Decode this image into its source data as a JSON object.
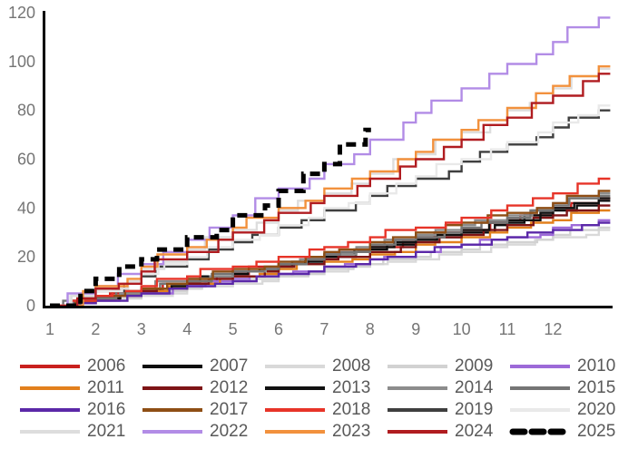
{
  "chart_data": {
    "type": "line",
    "subtype": "cumulative-step",
    "title": "",
    "xlabel": "",
    "ylabel": "",
    "x_ticks": [
      "1",
      "2",
      "3",
      "4",
      "5",
      "6",
      "7",
      "8",
      "9",
      "10",
      "11",
      "12"
    ],
    "y_ticks": [
      0,
      20,
      40,
      60,
      80,
      100,
      120
    ],
    "xlim": [
      1,
      13.25
    ],
    "ylim": [
      0,
      120
    ],
    "grid": false,
    "legend_position": "bottom",
    "axis_color": "#000000",
    "tick_label_color": "#757575",
    "legend_label_color": "#595959",
    "x_unit": "month",
    "series": [
      {
        "name": "2006",
        "color": "#c9211e",
        "values": [
          0,
          3,
          6,
          10,
          13,
          17,
          20,
          24,
          28,
          31,
          35,
          40,
          44
        ]
      },
      {
        "name": "2007",
        "color": "#0d0d0d",
        "values": [
          0,
          3,
          6,
          9,
          13,
          16,
          20,
          23,
          27,
          30,
          34,
          39,
          43
        ]
      },
      {
        "name": "2008",
        "color": "#d9d9d9",
        "values": [
          0,
          2,
          4,
          7,
          9,
          12,
          14,
          17,
          19,
          22,
          25,
          28,
          31
        ]
      },
      {
        "name": "2009",
        "color": "#d2d2d2",
        "values": [
          0,
          2,
          5,
          7,
          10,
          12,
          15,
          17,
          20,
          23,
          26,
          29,
          32
        ]
      },
      {
        "name": "2010",
        "color": "#9d6ad8",
        "values": [
          0,
          2,
          5,
          8,
          11,
          13,
          16,
          19,
          22,
          25,
          28,
          32,
          35
        ]
      },
      {
        "name": "2011",
        "color": "#e2801d",
        "values": [
          0,
          3,
          6,
          9,
          12,
          15,
          18,
          21,
          25,
          28,
          32,
          35,
          39
        ]
      },
      {
        "name": "2012",
        "color": "#7e1416",
        "values": [
          0,
          3,
          6,
          9,
          12,
          16,
          19,
          22,
          26,
          29,
          33,
          37,
          41
        ]
      },
      {
        "name": "2013",
        "color": "#111111",
        "values": [
          0,
          3,
          7,
          10,
          14,
          17,
          21,
          24,
          28,
          31,
          35,
          40,
          44
        ]
      },
      {
        "name": "2014",
        "color": "#8c8c8c",
        "values": [
          0,
          4,
          7,
          11,
          14,
          18,
          21,
          25,
          29,
          33,
          37,
          42,
          46
        ]
      },
      {
        "name": "2015",
        "color": "#757575",
        "values": [
          0,
          3,
          7,
          10,
          14,
          17,
          21,
          25,
          28,
          32,
          36,
          41,
          45
        ]
      },
      {
        "name": "2016",
        "color": "#5b28a8",
        "values": [
          0,
          2,
          5,
          8,
          10,
          13,
          16,
          19,
          22,
          25,
          28,
          31,
          34
        ]
      },
      {
        "name": "2017",
        "color": "#8e4e15",
        "values": [
          0,
          4,
          7,
          11,
          15,
          18,
          22,
          26,
          30,
          34,
          38,
          42,
          47
        ]
      },
      {
        "name": "2018",
        "color": "#e73428",
        "values": [
          0,
          4,
          8,
          12,
          16,
          20,
          24,
          28,
          32,
          36,
          41,
          46,
          52
        ]
      },
      {
        "name": "2019",
        "color": "#3f3f3f",
        "values": [
          0,
          6,
          12,
          19,
          26,
          32,
          39,
          45,
          52,
          59,
          66,
          73,
          80
        ]
      },
      {
        "name": "2020",
        "color": "#e9e9e9",
        "values": [
          0,
          6,
          13,
          20,
          27,
          33,
          40,
          46,
          53,
          60,
          67,
          75,
          82
        ]
      },
      {
        "name": "2021",
        "color": "#dddddd",
        "values": [
          0,
          7,
          15,
          23,
          31,
          39,
          46,
          54,
          62,
          71,
          80,
          89,
          97
        ]
      },
      {
        "name": "2022",
        "color": "#b28ce6",
        "values": [
          0,
          8,
          17,
          27,
          37,
          48,
          58,
          68,
          79,
          89,
          99,
          108,
          118
        ]
      },
      {
        "name": "2023",
        "color": "#f2913d",
        "values": [
          0,
          8,
          16,
          24,
          32,
          40,
          48,
          55,
          63,
          72,
          81,
          90,
          98
        ]
      },
      {
        "name": "2024",
        "color": "#b01c20",
        "values": [
          0,
          7,
          14,
          22,
          30,
          38,
          45,
          52,
          60,
          68,
          77,
          86,
          95
        ]
      },
      {
        "name": "2025",
        "color": "#000000",
        "dashed": true,
        "last_x": 7.9,
        "values": [
          0,
          11,
          19,
          28,
          37,
          47,
          58,
          72
        ]
      }
    ]
  }
}
